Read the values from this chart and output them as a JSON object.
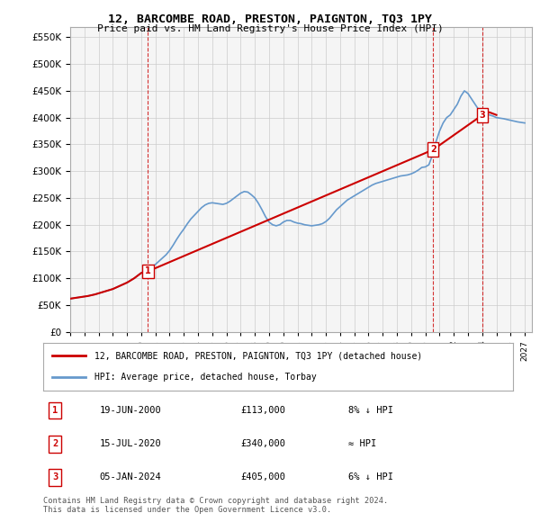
{
  "title": "12, BARCOMBE ROAD, PRESTON, PAIGNTON, TQ3 1PY",
  "subtitle": "Price paid vs. HM Land Registry's House Price Index (HPI)",
  "ylabel_values": [
    0,
    50000,
    100000,
    150000,
    200000,
    250000,
    300000,
    350000,
    400000,
    450000,
    500000,
    550000
  ],
  "ylim": [
    0,
    570000
  ],
  "xlim_start": 1995.0,
  "xlim_end": 2027.5,
  "sale_dates": [
    2000.47,
    2020.54,
    2024.02
  ],
  "sale_prices": [
    113000,
    340000,
    405000
  ],
  "sale_labels": [
    "1",
    "2",
    "3"
  ],
  "legend_line1": "12, BARCOMBE ROAD, PRESTON, PAIGNTON, TQ3 1PY (detached house)",
  "legend_line2": "HPI: Average price, detached house, Torbay",
  "table_rows": [
    {
      "num": "1",
      "date": "19-JUN-2000",
      "price": "£113,000",
      "hpi": "8% ↓ HPI"
    },
    {
      "num": "2",
      "date": "15-JUL-2020",
      "price": "£340,000",
      "hpi": "≈ HPI"
    },
    {
      "num": "3",
      "date": "05-JAN-2024",
      "price": "£405,000",
      "hpi": "6% ↓ HPI"
    }
  ],
  "footer": "Contains HM Land Registry data © Crown copyright and database right 2024.\nThis data is licensed under the Open Government Licence v3.0.",
  "sale_line_color": "#cc0000",
  "hpi_line_color": "#6699cc",
  "grid_color": "#cccccc",
  "background_color": "#ffffff",
  "plot_bg_color": "#f5f5f5",
  "dashed_line_color": "#cc0000",
  "hpi_data_x": [
    1995.0,
    1995.25,
    1995.5,
    1995.75,
    1996.0,
    1996.25,
    1996.5,
    1996.75,
    1997.0,
    1997.25,
    1997.5,
    1997.75,
    1998.0,
    1998.25,
    1998.5,
    1998.75,
    1999.0,
    1999.25,
    1999.5,
    1999.75,
    2000.0,
    2000.25,
    2000.5,
    2000.75,
    2001.0,
    2001.25,
    2001.5,
    2001.75,
    2002.0,
    2002.25,
    2002.5,
    2002.75,
    2003.0,
    2003.25,
    2003.5,
    2003.75,
    2004.0,
    2004.25,
    2004.5,
    2004.75,
    2005.0,
    2005.25,
    2005.5,
    2005.75,
    2006.0,
    2006.25,
    2006.5,
    2006.75,
    2007.0,
    2007.25,
    2007.5,
    2007.75,
    2008.0,
    2008.25,
    2008.5,
    2008.75,
    2009.0,
    2009.25,
    2009.5,
    2009.75,
    2010.0,
    2010.25,
    2010.5,
    2010.75,
    2011.0,
    2011.25,
    2011.5,
    2011.75,
    2012.0,
    2012.25,
    2012.5,
    2012.75,
    2013.0,
    2013.25,
    2013.5,
    2013.75,
    2014.0,
    2014.25,
    2014.5,
    2014.75,
    2015.0,
    2015.25,
    2015.5,
    2015.75,
    2016.0,
    2016.25,
    2016.5,
    2016.75,
    2017.0,
    2017.25,
    2017.5,
    2017.75,
    2018.0,
    2018.25,
    2018.5,
    2018.75,
    2019.0,
    2019.25,
    2019.5,
    2019.75,
    2020.0,
    2020.25,
    2020.5,
    2020.75,
    2021.0,
    2021.25,
    2021.5,
    2021.75,
    2022.0,
    2022.25,
    2022.5,
    2022.75,
    2023.0,
    2023.25,
    2023.5,
    2023.75,
    2024.0,
    2024.25,
    2024.5,
    2024.75,
    2025.0,
    2025.5,
    2026.0,
    2026.5,
    2027.0
  ],
  "hpi_data_y": [
    62000,
    63000,
    64000,
    65000,
    66000,
    67000,
    68500,
    70000,
    72000,
    74000,
    76000,
    78000,
    80000,
    83000,
    86000,
    89000,
    92000,
    96000,
    100000,
    105000,
    110000,
    114000,
    118000,
    122000,
    126000,
    132000,
    138000,
    144000,
    152000,
    162000,
    173000,
    183000,
    192000,
    202000,
    211000,
    218000,
    225000,
    232000,
    237000,
    240000,
    241000,
    240000,
    239000,
    238000,
    240000,
    244000,
    249000,
    254000,
    259000,
    262000,
    261000,
    256000,
    250000,
    240000,
    228000,
    215000,
    205000,
    200000,
    198000,
    200000,
    205000,
    208000,
    208000,
    205000,
    203000,
    202000,
    200000,
    199000,
    198000,
    199000,
    200000,
    202000,
    206000,
    212000,
    220000,
    228000,
    234000,
    240000,
    246000,
    250000,
    254000,
    258000,
    262000,
    266000,
    270000,
    274000,
    277000,
    279000,
    281000,
    283000,
    285000,
    287000,
    289000,
    291000,
    292000,
    293000,
    295000,
    298000,
    302000,
    307000,
    308000,
    312000,
    330000,
    355000,
    375000,
    390000,
    400000,
    405000,
    415000,
    425000,
    440000,
    450000,
    445000,
    435000,
    425000,
    415000,
    410000,
    408000,
    405000,
    403000,
    400000,
    398000,
    395000,
    392000,
    390000
  ],
  "sale_hpi_x": [
    1995.0,
    1995.25,
    1995.5,
    1995.75,
    1996.0,
    1996.25,
    1996.5,
    1996.75,
    1997.0,
    1997.25,
    1997.5,
    1997.75,
    1998.0,
    1998.25,
    1998.5,
    1998.75,
    1999.0,
    1999.25,
    1999.5,
    1999.75,
    2000.0,
    2000.47,
    2020.54,
    2024.02,
    2024.5,
    2025.0
  ],
  "sale_hpi_y": [
    62000,
    63000,
    64000,
    65000,
    66000,
    67000,
    68500,
    70000,
    72000,
    74000,
    76000,
    78000,
    80000,
    83000,
    86000,
    89000,
    92000,
    96000,
    100000,
    105000,
    110000,
    113000,
    340000,
    405000,
    410000,
    405000
  ]
}
